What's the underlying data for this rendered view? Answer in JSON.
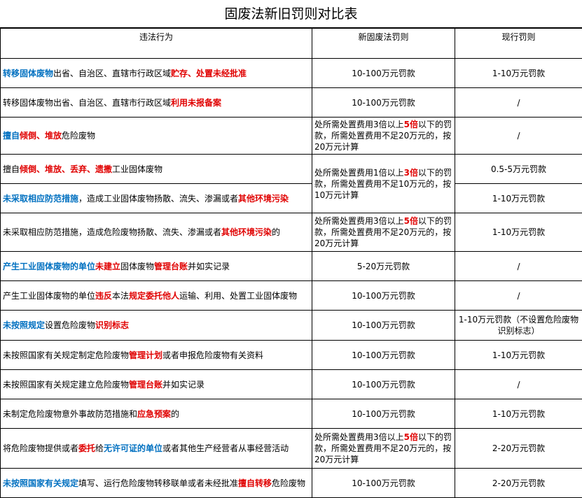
{
  "title": "固废法新旧罚则对比表",
  "table": {
    "header": [
      "违法行为",
      "新固废法罚则",
      "现行罚则"
    ],
    "rows": [
      {
        "act": [
          {
            "text": "转移固体废物",
            "style": "blue"
          },
          {
            "text": "出省、自治区、直辖市行政区域",
            "style": "plain"
          },
          {
            "text": "贮存、处置未经批准",
            "style": "red"
          }
        ],
        "new": [
          {
            "text": "10-100万元罚款",
            "style": "plain"
          }
        ],
        "current": [
          {
            "text": "1-10万元罚款",
            "style": "plain"
          }
        ]
      },
      {
        "act": [
          {
            "text": "转移固体废物出省、自治区、直辖市行政区域",
            "style": "plain"
          },
          {
            "text": "利用未报备案",
            "style": "red"
          }
        ],
        "new": [
          {
            "text": "10-100万元罚款",
            "style": "plain"
          }
        ],
        "current": [
          {
            "text": "/",
            "style": "plain"
          }
        ]
      },
      {
        "act": [
          {
            "text": "擅自",
            "style": "blue"
          },
          {
            "text": "倾倒、堆放",
            "style": "red"
          },
          {
            "text": "危险废物",
            "style": "plain"
          }
        ],
        "new": [
          {
            "text": "处所需处置费用3倍以上",
            "style": "plain"
          },
          {
            "text": "5倍",
            "style": "red"
          },
          {
            "text": "以下的罚款，所需处置费用不足20万元的，按20万元计算",
            "style": "plain"
          }
        ],
        "current": [
          {
            "text": "/",
            "style": "plain"
          }
        ]
      },
      {
        "act": [
          {
            "text": "擅自",
            "style": "plain"
          },
          {
            "text": "倾倒、堆放、丢弃、遗撒",
            "style": "red"
          },
          {
            "text": "工业固体废物",
            "style": "plain"
          }
        ],
        "new": [
          {
            "text": "处所需处置费用1倍以上",
            "style": "plain"
          },
          {
            "text": "3倍",
            "style": "red"
          },
          {
            "text": "以下的罚款，所需处置费用不足10万元的，按10万元计算",
            "style": "plain"
          }
        ],
        "current": [
          {
            "text": "0.5-5万元罚款",
            "style": "plain"
          }
        ]
      },
      {
        "act": [
          {
            "text": "未采取相应防范措施",
            "style": "blue"
          },
          {
            "text": "，造成工业固体废物扬散、流失、渗漏或者",
            "style": "plain"
          },
          {
            "text": "其他环境污染",
            "style": "red"
          }
        ],
        "current": [
          {
            "text": "1-10万元罚款",
            "style": "plain"
          }
        ]
      },
      {
        "act": [
          {
            "text": "未采取相应防范措施，造成危险废物扬散、流失、渗漏或者",
            "style": "plain"
          },
          {
            "text": "其他环境污染",
            "style": "red"
          },
          {
            "text": "的",
            "style": "plain"
          }
        ],
        "new": [
          {
            "text": "处所需处置费用3倍以上",
            "style": "plain"
          },
          {
            "text": "5倍",
            "style": "red"
          },
          {
            "text": "以下的罚款，所需处置费用不足20万元的，按20万元计算",
            "style": "plain"
          }
        ],
        "current": [
          {
            "text": "1-10万元罚款",
            "style": "plain"
          }
        ]
      },
      {
        "act": [
          {
            "text": "产生工业固体废物的单位",
            "style": "blue"
          },
          {
            "text": "未建立",
            "style": "red"
          },
          {
            "text": "固体废物",
            "style": "plain"
          },
          {
            "text": "管理台账",
            "style": "red"
          },
          {
            "text": "并如实记录",
            "style": "plain"
          }
        ],
        "new": [
          {
            "text": "5-20万元罚款",
            "style": "plain"
          }
        ],
        "current": [
          {
            "text": "/",
            "style": "plain"
          }
        ]
      },
      {
        "act": [
          {
            "text": "产生工业固体废物的单位",
            "style": "plain"
          },
          {
            "text": "违反",
            "style": "red"
          },
          {
            "text": "本法",
            "style": "plain"
          },
          {
            "text": "规定委托他人",
            "style": "red"
          },
          {
            "text": "运输、利用、处置工业固体废物",
            "style": "plain"
          }
        ],
        "new": [
          {
            "text": "10-100万元罚款",
            "style": "plain"
          }
        ],
        "current": [
          {
            "text": "/",
            "style": "plain"
          }
        ]
      },
      {
        "act": [
          {
            "text": "未按照规定",
            "style": "blue"
          },
          {
            "text": "设置危险废物",
            "style": "plain"
          },
          {
            "text": "识别标志",
            "style": "red"
          }
        ],
        "new": [
          {
            "text": "10-100万元罚款",
            "style": "plain"
          }
        ],
        "current": [
          {
            "text": "1-10万元罚款（不设置危险废物识别标志）",
            "style": "plain"
          }
        ]
      },
      {
        "act": [
          {
            "text": "未按照国家有关规定制定危险废物",
            "style": "plain"
          },
          {
            "text": "管理计划",
            "style": "red"
          },
          {
            "text": "或者申报危险废物有关资料",
            "style": "plain"
          }
        ],
        "new": [
          {
            "text": "10-100万元罚款",
            "style": "plain"
          }
        ],
        "current": [
          {
            "text": "1-10万元罚款",
            "style": "plain"
          }
        ]
      },
      {
        "act": [
          {
            "text": "未按照国家有关规定建立危险废物",
            "style": "plain"
          },
          {
            "text": "管理台账",
            "style": "red"
          },
          {
            "text": "并如实记录",
            "style": "plain"
          }
        ],
        "new": [
          {
            "text": "10-100万元罚款",
            "style": "plain"
          }
        ],
        "current": [
          {
            "text": "/",
            "style": "plain"
          }
        ]
      },
      {
        "act": [
          {
            "text": "未制定危险废物意外事故防范措施和",
            "style": "plain"
          },
          {
            "text": "应急预案",
            "style": "red"
          },
          {
            "text": "的",
            "style": "plain"
          }
        ],
        "new": [
          {
            "text": "10-100万元罚款",
            "style": "plain"
          }
        ],
        "current": [
          {
            "text": "1-10万元罚款",
            "style": "plain"
          }
        ]
      },
      {
        "act": [
          {
            "text": "将危险废物提供或者",
            "style": "plain"
          },
          {
            "text": "委托",
            "style": "red"
          },
          {
            "text": "给",
            "style": "plain"
          },
          {
            "text": "无许可证的单位",
            "style": "blue"
          },
          {
            "text": "或者其他生产经营者从事经营活动",
            "style": "plain"
          }
        ],
        "new": [
          {
            "text": "处所需处置费用3倍以上",
            "style": "plain"
          },
          {
            "text": "5倍",
            "style": "red"
          },
          {
            "text": "以下的罚款，所需处置费用不足20万元的，按20万元计算",
            "style": "plain"
          }
        ],
        "current": [
          {
            "text": "2-20万元罚款",
            "style": "plain"
          }
        ]
      },
      {
        "act": [
          {
            "text": "未按照国家有关规定",
            "style": "blue"
          },
          {
            "text": "填写、运行危险废物转移联单或者未经批准",
            "style": "plain"
          },
          {
            "text": "擅自转移",
            "style": "red"
          },
          {
            "text": "危险废物",
            "style": "plain"
          }
        ],
        "new": [
          {
            "text": "10-100万元罚款",
            "style": "plain"
          }
        ],
        "current": [
          {
            "text": "2-20万元罚款",
            "style": "plain"
          }
        ]
      }
    ]
  }
}
